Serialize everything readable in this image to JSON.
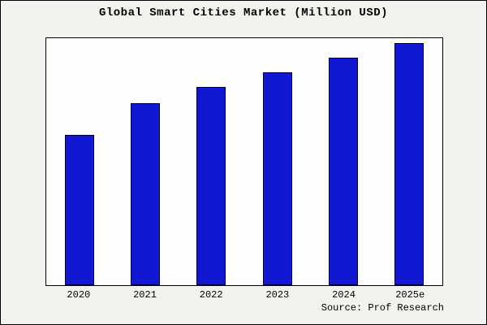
{
  "chart": {
    "title": "Global Smart Cities Market (Million USD)",
    "source": "Source: Prof Research"
  },
  "chart_data": {
    "type": "bar",
    "categories": [
      "2020",
      "2021",
      "2022",
      "2023",
      "2024",
      "2025e"
    ],
    "values": [
      62,
      75,
      82,
      88,
      94,
      100
    ],
    "title": "Global Smart Cities Market (Million USD)",
    "xlabel": "",
    "ylabel": "",
    "ylim": [
      0,
      102
    ],
    "grid": false,
    "legend": false,
    "bar_color": "#1118d2",
    "bar_border_color": "#000040",
    "plot_background": "#fdfdfb",
    "figure_background": "#f2f2ef",
    "source": "Source: Prof Research"
  }
}
